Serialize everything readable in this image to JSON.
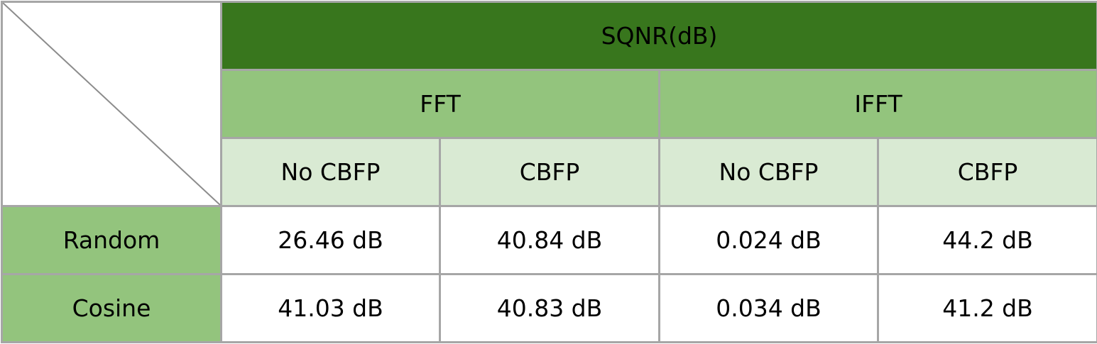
{
  "table": {
    "title": "SQNR(dB)",
    "groups": [
      {
        "label": "FFT",
        "subs": [
          "No CBFP",
          "CBFP"
        ]
      },
      {
        "label": "IFFT",
        "subs": [
          "No CBFP",
          "CBFP"
        ]
      }
    ],
    "rows": [
      {
        "label": "Random",
        "cells": [
          "26.46 dB",
          "40.84 dB",
          "0.024 dB",
          "44.2 dB"
        ]
      },
      {
        "label": "Cosine",
        "cells": [
          "41.03 dB",
          "40.83 dB",
          "0.034 dB",
          "41.2 dB"
        ]
      }
    ],
    "colors": {
      "title_bg": "#38761d",
      "group_bg": "#93c47d",
      "sub_bg": "#d9ead3",
      "row_head_bg": "#93c47d",
      "border": "#a6a6a6"
    }
  }
}
